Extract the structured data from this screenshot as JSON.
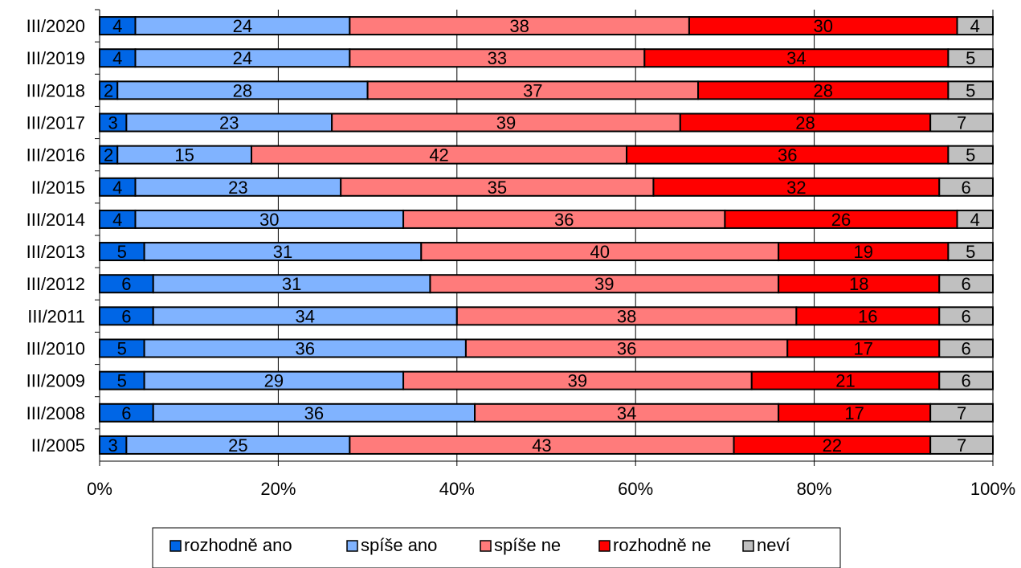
{
  "chart_data": {
    "type": "bar",
    "orientation": "horizontal",
    "stacked": true,
    "normalized": true,
    "title": "",
    "xlabel": "",
    "ylabel": "",
    "xlim": [
      0,
      100
    ],
    "x_ticks": [
      "0%",
      "20%",
      "40%",
      "60%",
      "80%",
      "100%"
    ],
    "grid": true,
    "legend_position": "bottom",
    "categories": [
      "III/2020",
      "III/2019",
      "III/2018",
      "III/2017",
      "III/2016",
      "II/2015",
      "III/2014",
      "III/2013",
      "III/2012",
      "III/2011",
      "III/2010",
      "III/2009",
      "III/2008",
      "II/2005"
    ],
    "series": [
      {
        "name": "rozhodně ano",
        "color": "#0066e6",
        "values": [
          4,
          4,
          2,
          3,
          2,
          4,
          4,
          5,
          6,
          6,
          5,
          5,
          6,
          3
        ]
      },
      {
        "name": "spíše ano",
        "color": "#80b3ff",
        "values": [
          24,
          24,
          28,
          23,
          15,
          23,
          30,
          31,
          31,
          34,
          36,
          29,
          36,
          25
        ]
      },
      {
        "name": "spíše ne",
        "color": "#ff7b7b",
        "values": [
          38,
          33,
          37,
          39,
          42,
          35,
          36,
          40,
          39,
          38,
          36,
          39,
          34,
          43
        ]
      },
      {
        "name": "rozhodně ne",
        "color": "#ff0000",
        "values": [
          30,
          34,
          28,
          28,
          36,
          32,
          26,
          19,
          18,
          16,
          17,
          21,
          17,
          22
        ]
      },
      {
        "name": "neví",
        "color": "#c0c0c0",
        "values": [
          4,
          5,
          5,
          7,
          5,
          6,
          4,
          5,
          6,
          6,
          6,
          6,
          7,
          7
        ]
      }
    ]
  }
}
